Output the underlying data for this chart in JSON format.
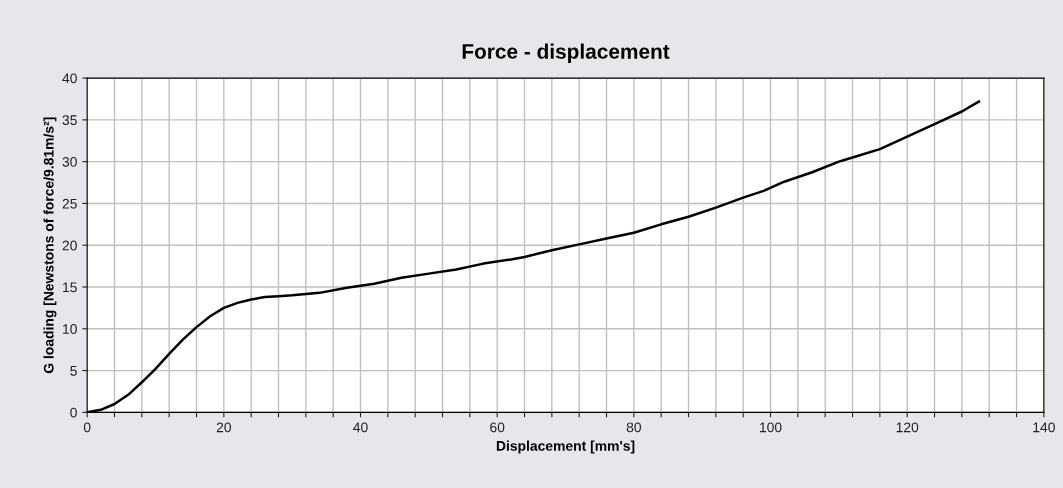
{
  "chart_data": {
    "type": "line",
    "title": "Force - displacement",
    "xlabel": "Displacement [mm's]",
    "ylabel": "G loading [Newstons of force/9.81m/s²]",
    "x": [
      0,
      2,
      4,
      6,
      8,
      10,
      12,
      14,
      16,
      18,
      20,
      22,
      24,
      26,
      28,
      30,
      34,
      38,
      42,
      46,
      50,
      54,
      58,
      62,
      64,
      68,
      72,
      76,
      80,
      84,
      88,
      92,
      96,
      99,
      102,
      106,
      110,
      112,
      116,
      120,
      124,
      128,
      130.5
    ],
    "series": [
      {
        "color": "#000000",
        "values": [
          0,
          0.3,
          1.0,
          2.1,
          3.6,
          5.2,
          7.0,
          8.7,
          10.2,
          11.5,
          12.5,
          13.1,
          13.5,
          13.8,
          13.9,
          14.0,
          14.3,
          14.9,
          15.4,
          16.1,
          16.6,
          17.1,
          17.8,
          18.3,
          18.6,
          19.4,
          20.1,
          20.8,
          21.5,
          22.5,
          23.4,
          24.5,
          25.7,
          26.5,
          27.6,
          28.7,
          30.0,
          30.5,
          31.5,
          33.0,
          34.5,
          36.0,
          37.2
        ]
      }
    ],
    "xlim": [
      0,
      140
    ],
    "ylim": [
      0,
      40
    ],
    "xticks": [
      0,
      {
        "value": 4,
        "label": null
      },
      {
        "value": 8,
        "label": null
      },
      {
        "value": 12,
        "label": null
      },
      {
        "value": 16,
        "label": null
      },
      20,
      {
        "value": 24,
        "label": null
      },
      {
        "value": 28,
        "label": null
      },
      {
        "value": 32,
        "label": null
      },
      {
        "value": 36,
        "label": null
      },
      40,
      {
        "value": 44,
        "label": null
      },
      {
        "value": 48,
        "label": null
      },
      {
        "value": 52,
        "label": null
      },
      {
        "value": 56,
        "label": null
      },
      60,
      {
        "value": 64,
        "label": null
      },
      {
        "value": 68,
        "label": null
      },
      {
        "value": 72,
        "label": null
      },
      {
        "value": 76,
        "label": null
      },
      80,
      {
        "value": 84,
        "label": null
      },
      {
        "value": 88,
        "label": null
      },
      {
        "value": 92,
        "label": null
      },
      {
        "value": 96,
        "label": null
      },
      100,
      {
        "value": 104,
        "label": null
      },
      {
        "value": 108,
        "label": null
      },
      {
        "value": 112,
        "label": null
      },
      {
        "value": 116,
        "label": null
      },
      120,
      {
        "value": 124,
        "label": null
      },
      {
        "value": 128,
        "label": null
      },
      {
        "value": 132,
        "label": null
      },
      {
        "value": 136,
        "label": null
      },
      140
    ],
    "yticks": [
      0,
      5,
      10,
      15,
      20,
      25,
      30,
      35,
      40
    ],
    "grid": true,
    "legend": false,
    "marker": "none",
    "line_style": "solid"
  }
}
